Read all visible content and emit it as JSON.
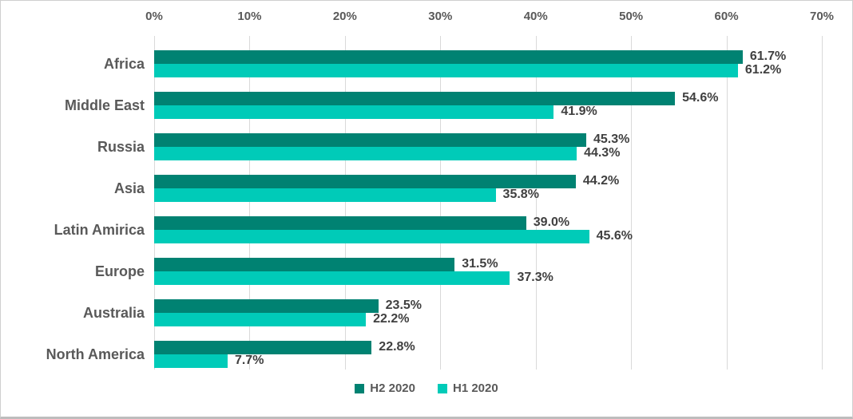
{
  "chart_data": {
    "type": "bar",
    "orientation": "horizontal",
    "title": "",
    "xlabel": "",
    "ylabel": "",
    "categories": [
      "Africa",
      "Middle East",
      "Russia",
      "Asia",
      "Latin Amirica",
      "Europe",
      "Australia",
      "North America"
    ],
    "series": [
      {
        "name": "H2 2020",
        "color": "#008272",
        "values": [
          61.7,
          54.6,
          45.3,
          44.2,
          39.0,
          31.5,
          23.5,
          22.8
        ]
      },
      {
        "name": "H1 2020",
        "color": "#00CBB8",
        "values": [
          61.2,
          41.9,
          44.3,
          35.8,
          45.6,
          37.3,
          22.2,
          7.7
        ]
      }
    ],
    "data_labels": [
      [
        "61.7%",
        "54.6%",
        "45.3%",
        "44.2%",
        "39.0%",
        "31.5%",
        "23.5%",
        "22.8%"
      ],
      [
        "61.2%",
        "41.9%",
        "44.3%",
        "35.8%",
        "45.6%",
        "37.3%",
        "22.2%",
        "7.7%"
      ]
    ],
    "xlim": [
      0,
      70
    ],
    "x_ticks": [
      "0%",
      "10%",
      "20%",
      "30%",
      "40%",
      "50%",
      "60%",
      "70%"
    ],
    "x_tick_values": [
      0,
      10,
      20,
      30,
      40,
      50,
      60,
      70
    ],
    "grid": true,
    "gridline_color": "#d9d9d9",
    "legend_position": "bottom",
    "legend_entries": [
      "H2 2020",
      "H1 2020"
    ],
    "value_suffix": "%",
    "text_colors": {
      "axis": "#595959",
      "category": "#595959",
      "data_label": "#404040"
    }
  }
}
